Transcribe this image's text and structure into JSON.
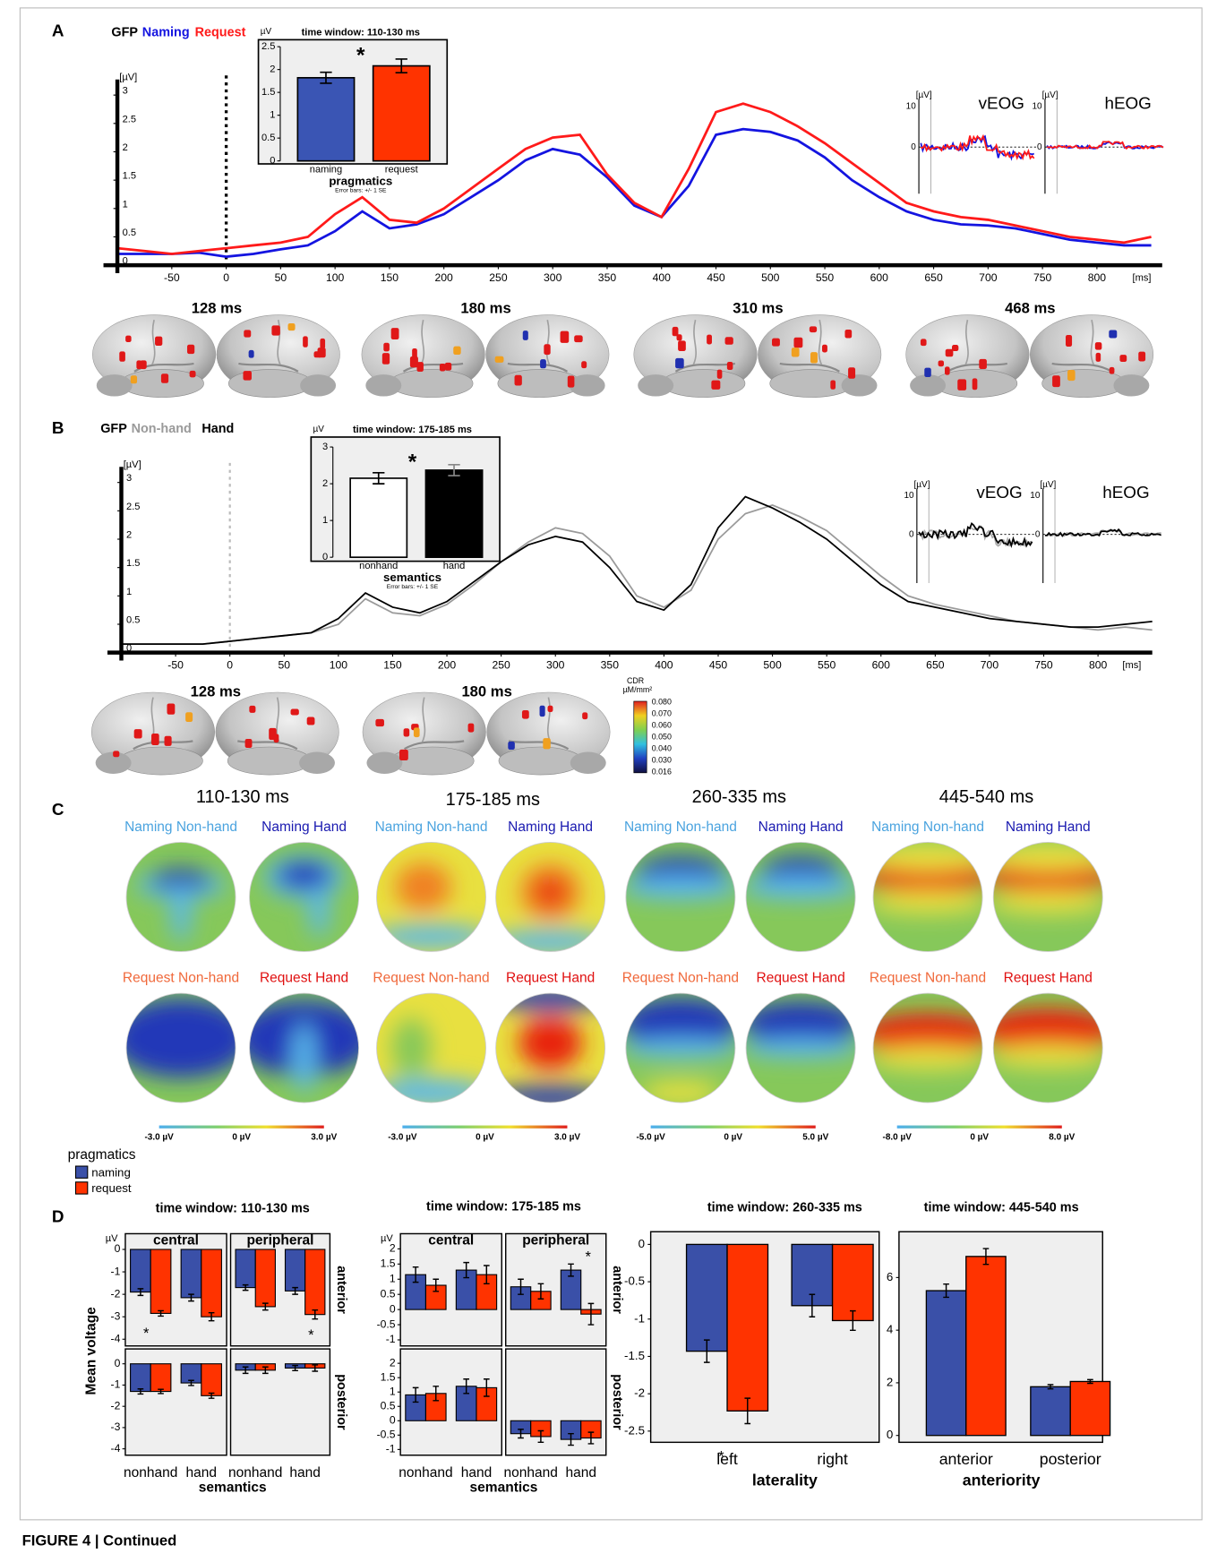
{
  "figure": {
    "panel_labels": [
      "A",
      "B",
      "C",
      "D"
    ],
    "caption": "FIGURE 4 | Continued",
    "brains_a": {
      "times": [
        "128 ms",
        "180 ms",
        "310 ms",
        "468 ms"
      ]
    },
    "brains_b": {
      "times": [
        "128 ms",
        "180 ms"
      ],
      "colorbar": {
        "title": "CDR",
        "unit": "µM/mm²",
        "labels": [
          "0.080",
          "0.070",
          "0.060",
          "0.050",
          "0.040",
          "0.030",
          "0.016"
        ]
      }
    },
    "eog": {
      "unit": "[µV]",
      "top": "10",
      "zero": "0",
      "names": [
        "vEOG",
        "hEOG"
      ]
    },
    "topomaps": {
      "windows": [
        {
          "time": "110-130 ms",
          "labels": [
            [
              "Naming Non-hand",
              "Naming Hand"
            ],
            [
              "Request Non-hand",
              "Request Hand"
            ]
          ],
          "scale": [
            "-3.0 µV",
            "0 µV",
            "3.0 µV"
          ]
        },
        {
          "time": "175-185 ms",
          "labels": [
            [
              "Naming Non-hand",
              "Naming Hand"
            ],
            [
              "Request Non-hand",
              "Request Hand"
            ]
          ],
          "scale": [
            "-3.0 µV",
            "0 µV",
            "3.0 µV"
          ]
        },
        {
          "time": "260-335 ms",
          "labels": [
            [
              "Naming Non-hand",
              "Naming Hand"
            ],
            [
              "Request Non-hand",
              "Request Hand"
            ]
          ],
          "scale": [
            "-5.0 µV",
            "0 µV",
            "5.0 µV"
          ]
        },
        {
          "time": "445-540 ms",
          "labels": [
            [
              "Naming Non-hand",
              "Naming Hand"
            ],
            [
              "Request Non-hand",
              "Request Hand"
            ]
          ],
          "scale": [
            "-8.0 µV",
            "0 µV",
            "8.0 µV"
          ]
        }
      ]
    }
  },
  "chart_data": [
    {
      "type": "line",
      "legend_title": "GFP",
      "y_unit": "[µV]",
      "x_unit": "[ms]",
      "x": [
        -100,
        -75,
        -50,
        -25,
        0,
        25,
        50,
        75,
        100,
        125,
        150,
        175,
        200,
        225,
        250,
        275,
        300,
        325,
        350,
        375,
        400,
        425,
        450,
        475,
        500,
        525,
        550,
        575,
        600,
        625,
        650,
        675,
        700,
        725,
        750,
        775,
        800,
        825,
        850
      ],
      "series": [
        {
          "name": "Naming",
          "color": "#1414e0",
          "values": [
            0.2,
            0.2,
            0.2,
            0.22,
            0.15,
            0.2,
            0.28,
            0.35,
            0.6,
            0.95,
            0.65,
            0.72,
            0.9,
            1.2,
            1.5,
            1.85,
            2.05,
            1.95,
            1.55,
            1.05,
            0.85,
            1.4,
            2.3,
            2.4,
            2.35,
            2.2,
            1.9,
            1.5,
            1.2,
            0.95,
            0.8,
            0.72,
            0.7,
            0.65,
            0.55,
            0.45,
            0.4,
            0.35,
            0.35
          ]
        },
        {
          "name": "Request",
          "color": "#ff1a1a",
          "values": [
            0.3,
            0.25,
            0.2,
            0.25,
            0.3,
            0.35,
            0.4,
            0.5,
            0.9,
            1.2,
            0.8,
            0.75,
            1.0,
            1.35,
            1.7,
            2.05,
            2.25,
            2.3,
            1.6,
            1.1,
            0.85,
            1.7,
            2.7,
            2.85,
            2.7,
            2.45,
            2.15,
            1.8,
            1.45,
            1.1,
            0.95,
            0.85,
            0.8,
            0.7,
            0.6,
            0.5,
            0.45,
            0.4,
            0.5
          ]
        }
      ],
      "xlim": [
        -100,
        860
      ],
      "ylim": [
        0,
        3.1
      ],
      "xticks": [
        -50,
        0,
        50,
        100,
        150,
        200,
        250,
        300,
        350,
        400,
        450,
        500,
        550,
        600,
        650,
        700,
        750,
        800
      ],
      "yticks": [
        0,
        0.5,
        1,
        1.5,
        2,
        2.5,
        3
      ]
    },
    {
      "type": "bar",
      "title": "time window: 110-130 ms",
      "y_unit": "µV",
      "xlabel": "pragmatics",
      "note": "Error bars: +/- 1 SE",
      "annotation": "*",
      "categories": [
        "naming",
        "request"
      ],
      "values": [
        1.82,
        2.08
      ],
      "errors": [
        0.12,
        0.15
      ],
      "colors": [
        "#3a55b4",
        "#ff3300"
      ],
      "ylim": [
        0,
        2.5
      ],
      "yticks": [
        0,
        0.5,
        1,
        1.5,
        2,
        2.5
      ]
    },
    {
      "type": "line",
      "legend_title": "GFP",
      "y_unit": "[µV]",
      "x_unit": "[ms]",
      "x": [
        -100,
        -75,
        -50,
        -25,
        0,
        25,
        50,
        75,
        100,
        125,
        150,
        175,
        200,
        225,
        250,
        275,
        300,
        325,
        350,
        375,
        400,
        425,
        450,
        475,
        500,
        525,
        550,
        575,
        600,
        625,
        650,
        675,
        700,
        725,
        750,
        775,
        800,
        825,
        850
      ],
      "series": [
        {
          "name": "Non-hand",
          "color": "#9a9a9a",
          "values": [
            0.15,
            0.15,
            0.15,
            0.15,
            0.2,
            0.25,
            0.3,
            0.35,
            0.5,
            0.95,
            0.7,
            0.65,
            0.85,
            1.2,
            1.6,
            1.95,
            2.2,
            2.1,
            1.7,
            1.0,
            0.8,
            1.1,
            2.0,
            2.45,
            2.6,
            2.4,
            2.15,
            1.75,
            1.35,
            1.0,
            0.85,
            0.75,
            0.65,
            0.55,
            0.5,
            0.45,
            0.4,
            0.45,
            0.4
          ]
        },
        {
          "name": "Hand",
          "color": "#000000",
          "values": [
            0.15,
            0.15,
            0.15,
            0.15,
            0.2,
            0.25,
            0.3,
            0.35,
            0.6,
            1.05,
            0.8,
            0.7,
            0.9,
            1.25,
            1.6,
            1.9,
            2.05,
            1.95,
            1.5,
            0.9,
            0.75,
            1.2,
            2.2,
            2.75,
            2.55,
            2.3,
            2.0,
            1.6,
            1.2,
            0.9,
            0.8,
            0.7,
            0.6,
            0.55,
            0.5,
            0.45,
            0.45,
            0.5,
            0.55
          ]
        }
      ],
      "xlim": [
        -100,
        850
      ],
      "ylim": [
        0,
        3.1
      ],
      "xticks": [
        -50,
        0,
        50,
        100,
        150,
        200,
        250,
        300,
        350,
        400,
        450,
        500,
        550,
        600,
        650,
        700,
        750,
        800
      ],
      "yticks": [
        0,
        0.5,
        1,
        1.5,
        2,
        2.5,
        3
      ]
    },
    {
      "type": "bar",
      "title": "time window: 175-185 ms",
      "y_unit": "µV",
      "xlabel": "semantics",
      "note": "Error bars: +/- 1 SE",
      "annotation": "*",
      "categories": [
        "nonhand",
        "hand"
      ],
      "values": [
        2.15,
        2.37
      ],
      "errors": [
        0.15,
        0.15
      ],
      "colors": [
        "#ffffff",
        "#000000"
      ],
      "ylim": [
        0,
        3
      ],
      "yticks": [
        0,
        1,
        2,
        3
      ]
    },
    {
      "type": "bar_grid",
      "title": "time window: 110-130 ms",
      "legend_title": "pragmatics",
      "y_unit": "µV",
      "ylabel": "Mean voltage",
      "xlabel": "semantics",
      "categories": [
        "nonhand",
        "hand"
      ],
      "columns": [
        "central",
        "peripheral"
      ],
      "rows": [
        "anterior",
        "posterior"
      ],
      "series": [
        {
          "name": "naming",
          "color": "#3a50a8"
        },
        {
          "name": "request",
          "color": "#ff3300"
        }
      ],
      "ylim": [
        -4.3,
        0.7
      ],
      "yticks": [
        0,
        -1,
        -2,
        -3,
        -4
      ],
      "panels": [
        [
          {
            "values": [
              [
                -1.9,
                -2.15
              ],
              [
                -2.85,
                -3.0
              ]
            ],
            "errors": [
              [
                0.15,
                0.15
              ],
              [
                0.12,
                0.18
              ]
            ],
            "note": "*"
          },
          {
            "values": [
              [
                -1.7,
                -1.85
              ],
              [
                -2.55,
                -2.9
              ]
            ],
            "errors": [
              [
                0.12,
                0.15
              ],
              [
                0.15,
                0.2
              ]
            ],
            "note": "*"
          }
        ],
        [
          {
            "values": [
              [
                -1.3,
                -0.9
              ],
              [
                -1.3,
                -1.5
              ]
            ],
            "errors": [
              [
                0.12,
                0.12
              ],
              [
                0.1,
                0.12
              ]
            ]
          },
          {
            "values": [
              [
                -0.3,
                -0.2
              ],
              [
                -0.3,
                -0.2
              ]
            ],
            "errors": [
              [
                0.15,
                0.12
              ],
              [
                0.15,
                0.15
              ]
            ]
          }
        ]
      ]
    },
    {
      "type": "bar_grid",
      "title": "time window: 175-185 ms",
      "y_unit": "µV",
      "xlabel": "semantics",
      "categories": [
        "nonhand",
        "hand"
      ],
      "columns": [
        "central",
        "peripheral"
      ],
      "rows": [
        "anterior",
        "posterior"
      ],
      "series": [
        {
          "color": "#3a50a8"
        },
        {
          "color": "#ff3300"
        }
      ],
      "ylim": [
        -1.2,
        2.5
      ],
      "yticks": [
        -1,
        -0.5,
        0,
        0.5,
        1,
        1.5,
        2
      ],
      "panels": [
        [
          {
            "values": [
              [
                1.15,
                1.3
              ],
              [
                0.8,
                1.15
              ]
            ],
            "errors": [
              [
                0.25,
                0.25
              ],
              [
                0.2,
                0.3
              ]
            ]
          },
          {
            "values": [
              [
                0.75,
                1.3
              ],
              [
                0.6,
                -0.15
              ]
            ],
            "errors": [
              [
                0.25,
                0.2
              ],
              [
                0.25,
                0.35
              ]
            ],
            "note": "*"
          }
        ],
        [
          {
            "values": [
              [
                0.9,
                1.2
              ],
              [
                0.95,
                1.15
              ]
            ],
            "errors": [
              [
                0.25,
                0.25
              ],
              [
                0.25,
                0.3
              ]
            ]
          },
          {
            "values": [
              [
                -0.45,
                -0.65
              ],
              [
                -0.55,
                -0.6
              ]
            ],
            "errors": [
              [
                0.15,
                0.2
              ],
              [
                0.2,
                0.2
              ]
            ]
          }
        ]
      ]
    },
    {
      "type": "grouped_bar",
      "title": "time window: 260-335 ms",
      "xlabel": "laterality",
      "note": "*",
      "categories": [
        "left",
        "right"
      ],
      "series": [
        {
          "color": "#3a50a8",
          "values": [
            -1.43,
            -0.82
          ],
          "errors": [
            0.15,
            0.15
          ]
        },
        {
          "color": "#ff3300",
          "values": [
            -2.23,
            -1.02
          ],
          "errors": [
            0.17,
            0.13
          ]
        }
      ],
      "ylim": [
        -2.65,
        0.17
      ],
      "yticks": [
        0,
        -0.5,
        -1,
        -1.5,
        -2,
        -2.5
      ]
    },
    {
      "type": "grouped_bar",
      "title": "time window: 445-540 ms",
      "xlabel": "anteriority",
      "categories": [
        "anterior",
        "posterior"
      ],
      "series": [
        {
          "color": "#3a50a8",
          "values": [
            5.5,
            1.85
          ],
          "errors": [
            0.25,
            0.08
          ]
        },
        {
          "color": "#ff3300",
          "values": [
            6.8,
            2.05
          ],
          "errors": [
            0.3,
            0.07
          ]
        }
      ],
      "ylim": [
        -0.26,
        7.74
      ],
      "yticks": [
        0,
        2,
        4,
        6
      ]
    }
  ]
}
